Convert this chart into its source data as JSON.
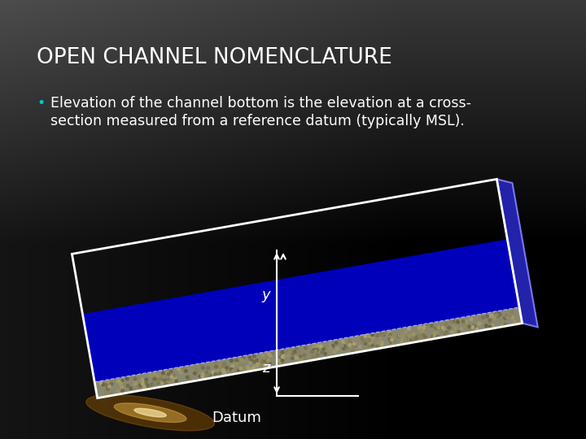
{
  "title": "OPEN CHANNEL NOMENCLATURE",
  "title_color": "#ffffff",
  "title_fontsize": 19,
  "bullet_text_line1": "Elevation of the channel bottom is the elevation at a cross-",
  "bullet_text_line2": "section measured from a reference datum (typically MSL).",
  "bullet_color": "#ffffff",
  "bullet_dot_color": "#00cccc",
  "bullet_fontsize": 12.5,
  "bg_color_top": "#3a3a3a",
  "bg_color_bottom": "#000000",
  "channel_water_color": "#0000bb",
  "channel_bed_color": "#888870",
  "channel_border_color": "#ffffff",
  "channel_right_wall_color": "#2222aa",
  "channel_right_wall_edge": "#7777ee",
  "arrow_color": "#ffffff",
  "label_y": "y",
  "label_z": "z",
  "label_datum": "Datum",
  "label_fontsize": 13,
  "glow_color": "#cc8800",
  "rotation_deg": -10
}
